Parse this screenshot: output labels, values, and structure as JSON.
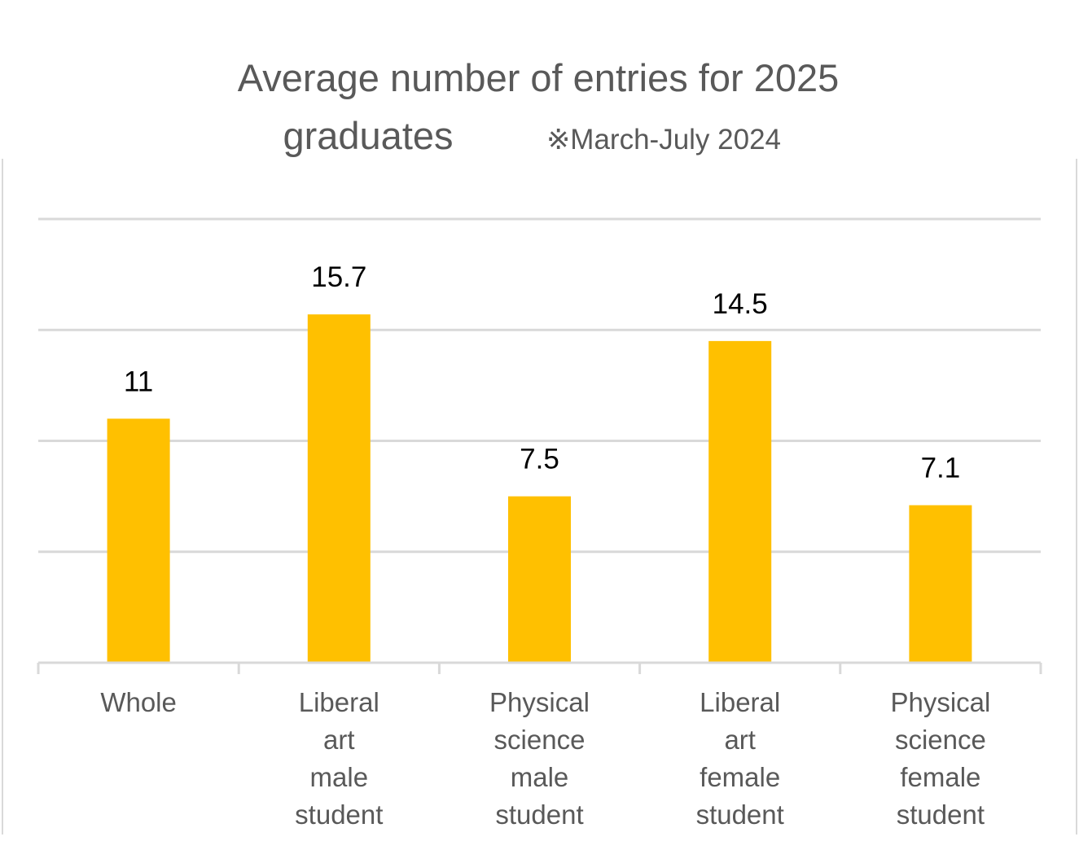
{
  "chart_data": {
    "type": "bar",
    "title_line1": "Average number of entries for 2025",
    "title_line2": "graduates",
    "subtitle": "※March-July 2024",
    "categories": [
      [
        "Whole"
      ],
      [
        "Liberal",
        "art",
        "male",
        "student"
      ],
      [
        "Physical",
        "science",
        "male",
        "student"
      ],
      [
        "Liberal",
        "art",
        "female",
        "student"
      ],
      [
        "Physical",
        "science",
        "female",
        "student"
      ]
    ],
    "values": [
      11,
      15.7,
      7.5,
      14.5,
      7.1
    ],
    "data_labels": [
      "11",
      "15.7",
      "7.5",
      "14.5",
      "7.1"
    ],
    "ylim": [
      0,
      20
    ],
    "grid": true,
    "bar_color": "#FFC000",
    "gridline_color": "#D9D9D9",
    "title_color": "#595959",
    "label_color": "#000000",
    "category_color": "#595959"
  }
}
